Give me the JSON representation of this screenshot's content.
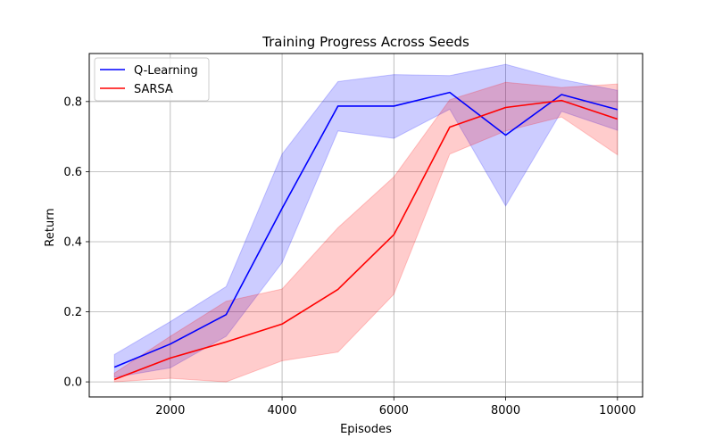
{
  "chart_data": {
    "type": "line",
    "title": "Training Progress Across Seeds",
    "xlabel": "Episodes",
    "ylabel": "Return",
    "x": [
      1000,
      2000,
      3000,
      4000,
      5000,
      6000,
      7000,
      8000,
      9000,
      10000
    ],
    "xlim": [
      550,
      10450
    ],
    "ylim": [
      -0.043,
      0.937
    ],
    "xticks": [
      2000,
      4000,
      6000,
      8000,
      10000
    ],
    "yticks": [
      0.0,
      0.2,
      0.4,
      0.6,
      0.8
    ],
    "grid": true,
    "legend": "top-left",
    "series": [
      {
        "name": "Q-Learning",
        "color": "#0000ff",
        "band_color": "#0000ff",
        "values": [
          0.042,
          0.108,
          0.192,
          0.495,
          0.787,
          0.787,
          0.826,
          0.704,
          0.82,
          0.777
        ],
        "upper": [
          0.078,
          0.172,
          0.272,
          0.65,
          0.857,
          0.877,
          0.874,
          0.906,
          0.863,
          0.832
        ],
        "lower": [
          0.013,
          0.04,
          0.13,
          0.34,
          0.716,
          0.695,
          0.778,
          0.502,
          0.772,
          0.718
        ]
      },
      {
        "name": "SARSA",
        "color": "#ff0000",
        "band_color": "#ff0000",
        "values": [
          0.007,
          0.068,
          0.114,
          0.165,
          0.264,
          0.42,
          0.727,
          0.783,
          0.803,
          0.75
        ],
        "upper": [
          0.025,
          0.13,
          0.23,
          0.265,
          0.44,
          0.585,
          0.805,
          0.855,
          0.84,
          0.85
        ],
        "lower": [
          0.0,
          0.01,
          0.0,
          0.06,
          0.085,
          0.25,
          0.65,
          0.716,
          0.756,
          0.648
        ]
      }
    ]
  }
}
